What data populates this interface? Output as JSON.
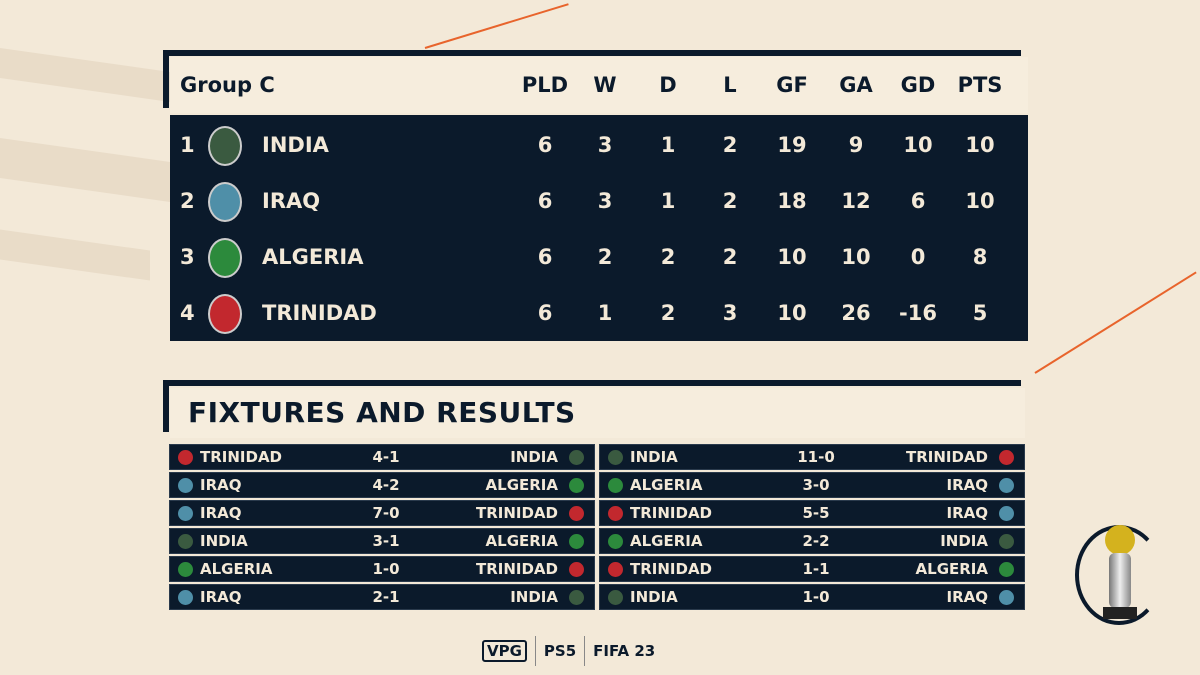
{
  "standings": {
    "title": "Group C",
    "columns": [
      "PLD",
      "W",
      "D",
      "L",
      "GF",
      "GA",
      "GD",
      "PTS"
    ],
    "rows": [
      {
        "pos": "1",
        "team": "INDIA",
        "crest_color": "#3a5a40",
        "stats": [
          "6",
          "3",
          "1",
          "2",
          "19",
          "9",
          "10",
          "10"
        ]
      },
      {
        "pos": "2",
        "team": "IRAQ",
        "crest_color": "#4f8fa8",
        "stats": [
          "6",
          "3",
          "1",
          "2",
          "18",
          "12",
          "6",
          "10"
        ]
      },
      {
        "pos": "3",
        "team": "ALGERIA",
        "crest_color": "#2c8a3c",
        "stats": [
          "6",
          "2",
          "2",
          "2",
          "10",
          "10",
          "0",
          "8"
        ]
      },
      {
        "pos": "4",
        "team": "TRINIDAD",
        "crest_color": "#c2282e",
        "stats": [
          "6",
          "1",
          "2",
          "3",
          "10",
          "26",
          "-16",
          "5"
        ]
      }
    ]
  },
  "fixtures": {
    "title": "FIXTURES AND RESULTS",
    "left": [
      {
        "home": "TRINIDAD",
        "score": "4-1",
        "away": "INDIA",
        "hc": "#c2282e",
        "ac": "#3a5a40"
      },
      {
        "home": "IRAQ",
        "score": "4-2",
        "away": "ALGERIA",
        "hc": "#4f8fa8",
        "ac": "#2c8a3c"
      },
      {
        "home": "IRAQ",
        "score": "7-0",
        "away": "TRINIDAD",
        "hc": "#4f8fa8",
        "ac": "#c2282e"
      },
      {
        "home": "INDIA",
        "score": "3-1",
        "away": "ALGERIA",
        "hc": "#3a5a40",
        "ac": "#2c8a3c"
      },
      {
        "home": "ALGERIA",
        "score": "1-0",
        "away": "TRINIDAD",
        "hc": "#2c8a3c",
        "ac": "#c2282e"
      },
      {
        "home": "IRAQ",
        "score": "2-1",
        "away": "INDIA",
        "hc": "#4f8fa8",
        "ac": "#3a5a40"
      }
    ],
    "right": [
      {
        "home": "INDIA",
        "score": "11-0",
        "away": "TRINIDAD",
        "hc": "#3a5a40",
        "ac": "#c2282e"
      },
      {
        "home": "ALGERIA",
        "score": "3-0",
        "away": "IRAQ",
        "hc": "#2c8a3c",
        "ac": "#4f8fa8"
      },
      {
        "home": "TRINIDAD",
        "score": "5-5",
        "away": "IRAQ",
        "hc": "#c2282e",
        "ac": "#4f8fa8"
      },
      {
        "home": "ALGERIA",
        "score": "2-2",
        "away": "INDIA",
        "hc": "#2c8a3c",
        "ac": "#3a5a40"
      },
      {
        "home": "TRINIDAD",
        "score": "1-1",
        "away": "ALGERIA",
        "hc": "#c2282e",
        "ac": "#2c8a3c"
      },
      {
        "home": "INDIA",
        "score": "1-0",
        "away": "IRAQ",
        "hc": "#3a5a40",
        "ac": "#4f8fa8"
      }
    ]
  },
  "footer": {
    "logos": [
      "VPG",
      "PS5",
      "FIFA 23"
    ]
  },
  "colors": {
    "navy": "#0b1a2b",
    "cream": "#f3e9d8",
    "accent": "#e8642c"
  }
}
